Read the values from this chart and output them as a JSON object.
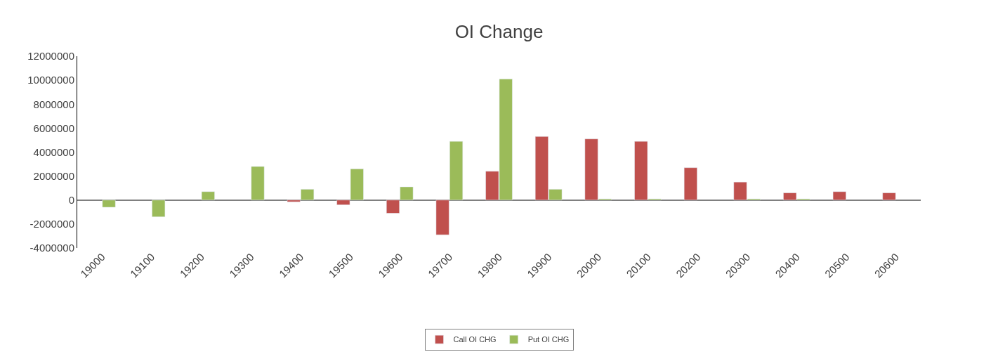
{
  "chart_data": {
    "type": "bar",
    "title": "OI Change",
    "categories": [
      "19000",
      "19100",
      "19200",
      "19300",
      "19400",
      "19500",
      "19600",
      "19700",
      "19800",
      "19900",
      "20000",
      "20100",
      "20200",
      "20300",
      "20400",
      "20500",
      "20600"
    ],
    "series": [
      {
        "name": "Call OI CHG",
        "color": "#c0504d",
        "values": [
          null,
          null,
          null,
          null,
          -150000,
          -400000,
          -1100000,
          -2900000,
          2400000,
          5300000,
          5100000,
          4900000,
          2700000,
          1500000,
          600000,
          700000,
          600000
        ]
      },
      {
        "name": "Put OI CHG",
        "color": "#9bbb59",
        "values": [
          -600000,
          -1400000,
          700000,
          2800000,
          900000,
          2600000,
          1100000,
          4900000,
          10100000,
          900000,
          100000,
          100000,
          null,
          100000,
          100000,
          null,
          null
        ]
      }
    ],
    "ylim": [
      -4000000,
      12000000
    ],
    "yticks": [
      -4000000,
      -2000000,
      0,
      2000000,
      4000000,
      6000000,
      8000000,
      10000000,
      12000000
    ],
    "legend": "bottom"
  }
}
